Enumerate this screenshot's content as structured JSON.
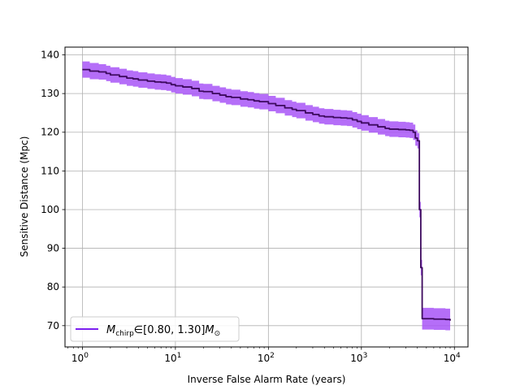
{
  "chart_data": {
    "type": "line",
    "title": "",
    "xlabel": "Inverse False Alarm Rate (years)",
    "ylabel": "Sensitive Distance (Mpc)",
    "xscale": "log",
    "xlim": [
      0.65,
      14000
    ],
    "ylim": [
      64.5,
      142
    ],
    "grid": true,
    "legend_position": "lower-left",
    "x_ticks": [
      {
        "value": 1,
        "base": "10",
        "exp": "0"
      },
      {
        "value": 10,
        "base": "10",
        "exp": "1"
      },
      {
        "value": 100,
        "base": "10",
        "exp": "2"
      },
      {
        "value": 1000,
        "base": "10",
        "exp": "3"
      },
      {
        "value": 10000,
        "base": "10",
        "exp": "4"
      }
    ],
    "y_ticks": [
      {
        "value": 70,
        "label": "70"
      },
      {
        "value": 80,
        "label": "80"
      },
      {
        "value": 90,
        "label": "90"
      },
      {
        "value": 100,
        "label": "100"
      },
      {
        "value": 110,
        "label": "110"
      },
      {
        "value": 120,
        "label": "120"
      },
      {
        "value": 130,
        "label": "130"
      },
      {
        "value": 140,
        "label": "140"
      }
    ],
    "series": [
      {
        "legend": {
          "var": "M",
          "sub": "chirp",
          "range": "∈[0.80, 1.30]",
          "unit": "M",
          "unit_sub": "⊙"
        },
        "line_color": "#3d0a5e",
        "band_color": "#a855f7",
        "legend_color": "#7c1ff0",
        "x": [
          1,
          1.2,
          1.5,
          1.8,
          2,
          2.5,
          3,
          3.5,
          4,
          5,
          6,
          7,
          8,
          9,
          10,
          12,
          15,
          18,
          20,
          25,
          30,
          35,
          40,
          50,
          60,
          70,
          80,
          100,
          120,
          150,
          180,
          200,
          250,
          300,
          350,
          400,
          500,
          600,
          700,
          800,
          900,
          1000,
          1200,
          1500,
          1800,
          2000,
          2500,
          3000,
          3300,
          3600,
          3800,
          4000,
          4100,
          4200,
          4350,
          4500,
          5000,
          6000,
          7000,
          8000,
          9000
        ],
        "y": [
          136.2,
          135.8,
          135.6,
          135.2,
          134.8,
          134.4,
          134.0,
          133.8,
          133.5,
          133.2,
          133.0,
          132.9,
          132.7,
          132.3,
          132.0,
          131.7,
          131.3,
          130.6,
          130.5,
          130.0,
          129.6,
          129.2,
          129.0,
          128.6,
          128.4,
          128.1,
          127.9,
          127.4,
          126.9,
          126.3,
          125.9,
          125.6,
          125.0,
          124.6,
          124.2,
          124.0,
          123.8,
          123.7,
          123.6,
          123.2,
          122.8,
          122.4,
          121.9,
          121.4,
          121.0,
          120.8,
          120.7,
          120.6,
          120.5,
          120.0,
          118.5,
          117.8,
          117.8,
          100.0,
          85.0,
          71.8,
          71.8,
          71.7,
          71.7,
          71.6,
          71.3
        ],
        "band_halfwidth": [
          2.1,
          2.1,
          2.0,
          2.0,
          2.0,
          2.0,
          2.0,
          2.0,
          2.0,
          2.0,
          2.0,
          2.0,
          2.0,
          2.0,
          2.0,
          2.0,
          2.0,
          2.0,
          2.0,
          2.0,
          2.0,
          2.0,
          2.0,
          2.0,
          2.0,
          2.0,
          2.0,
          2.0,
          2.0,
          2.0,
          2.0,
          2.0,
          2.0,
          2.0,
          2.0,
          2.0,
          2.0,
          2.0,
          2.0,
          2.0,
          2.0,
          2.0,
          2.0,
          2.0,
          2.0,
          2.0,
          2.0,
          2.0,
          2.0,
          2.0,
          2.0,
          2.0,
          2.0,
          2.0,
          2.0,
          2.8,
          2.8,
          2.8,
          2.8,
          2.8,
          2.8
        ]
      }
    ]
  }
}
